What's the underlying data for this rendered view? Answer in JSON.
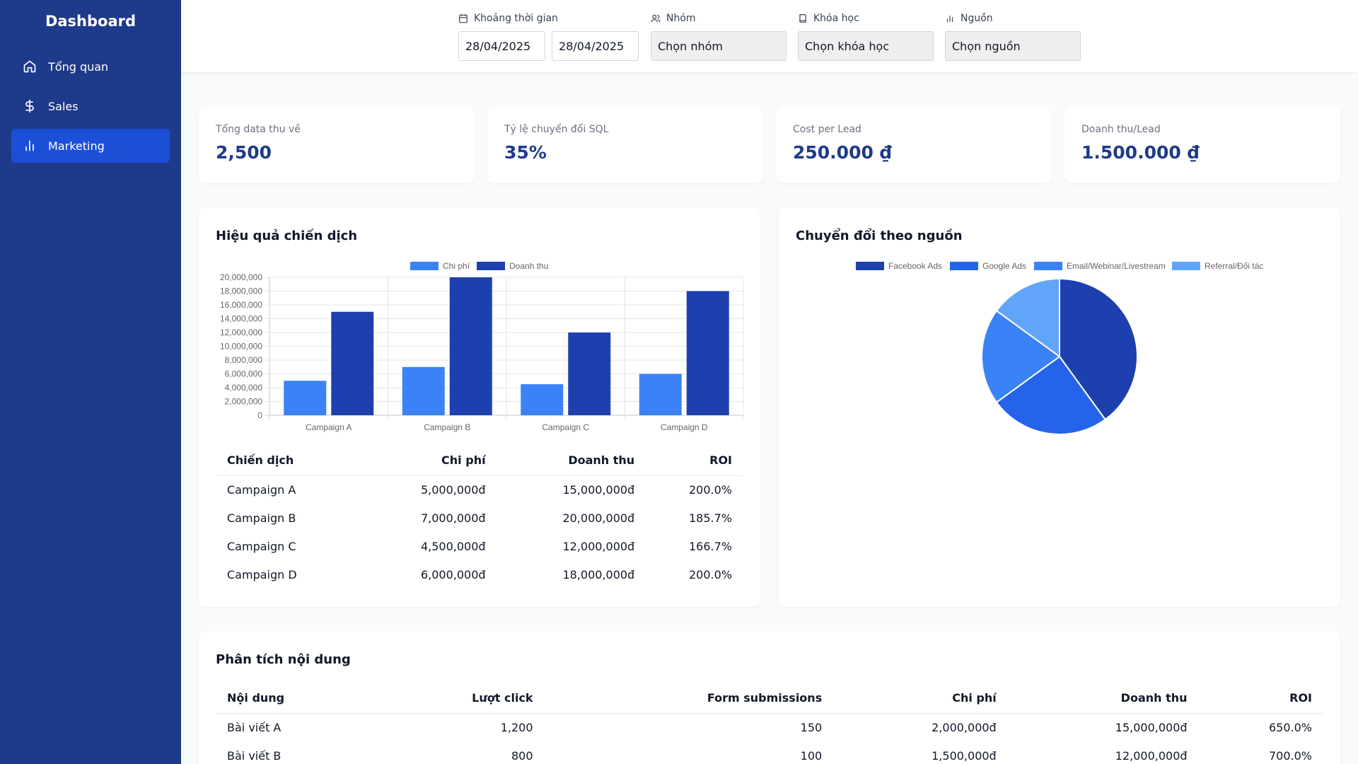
{
  "sidebar": {
    "title": "Dashboard",
    "items": [
      {
        "label": "Tổng quan",
        "icon": "home-icon"
      },
      {
        "label": "Sales",
        "icon": "dollar-icon"
      },
      {
        "label": "Marketing",
        "icon": "bar-chart-icon",
        "active": true
      }
    ]
  },
  "filters": {
    "date": {
      "label": "Khoảng thời gian",
      "from": "28/04/2025",
      "to": "28/04/2025"
    },
    "group": {
      "label": "Nhóm",
      "value": "Chọn nhóm"
    },
    "course": {
      "label": "Khóa học",
      "value": "Chọn khóa học"
    },
    "source": {
      "label": "Nguồn",
      "value": "Chọn nguồn"
    }
  },
  "kpis": [
    {
      "label": "Tổng data thu về",
      "value": "2,500"
    },
    {
      "label": "Tỷ lệ chuyển đổi SQL",
      "value": "35%"
    },
    {
      "label": "Cost per Lead",
      "value": "250.000 ₫"
    },
    {
      "label": "Doanh thu/Lead",
      "value": "1.500.000 ₫"
    }
  ],
  "campaign": {
    "title": "Hiệu quả chiến dịch",
    "columns": [
      "Chiến dịch",
      "Chi phí",
      "Doanh thu",
      "ROI"
    ],
    "rows": [
      [
        "Campaign A",
        "5,000,000đ",
        "15,000,000đ",
        "200.0%"
      ],
      [
        "Campaign B",
        "7,000,000đ",
        "20,000,000đ",
        "185.7%"
      ],
      [
        "Campaign C",
        "4,500,000đ",
        "12,000,000đ",
        "166.7%"
      ],
      [
        "Campaign D",
        "6,000,000đ",
        "18,000,000đ",
        "200.0%"
      ]
    ]
  },
  "source_panel": {
    "title": "Chuyển đổi theo nguồn"
  },
  "content": {
    "title": "Phân tích nội dung",
    "columns": [
      "Nội dung",
      "Lượt click",
      "Form submissions",
      "Chi phí",
      "Doanh thu",
      "ROI"
    ],
    "rows": [
      [
        "Bài viết A",
        "1,200",
        "150",
        "2,000,000đ",
        "15,000,000đ",
        "650.0%"
      ],
      [
        "Bài viết B",
        "800",
        "100",
        "1,500,000đ",
        "12,000,000đ",
        "700.0%"
      ]
    ]
  },
  "chart_data": [
    {
      "type": "bar",
      "categories": [
        "Campaign A",
        "Campaign B",
        "Campaign C",
        "Campaign D"
      ],
      "series": [
        {
          "name": "Chi phí",
          "values": [
            5000000,
            7000000,
            4500000,
            6000000
          ],
          "color": "#3b82f6"
        },
        {
          "name": "Doanh thu",
          "values": [
            15000000,
            20000000,
            12000000,
            18000000
          ],
          "color": "#1e40af"
        }
      ],
      "ylim": [
        0,
        20000000
      ],
      "yticks": [
        "0",
        "2,000,000",
        "4,000,000",
        "6,000,000",
        "8,000,000",
        "10,000,000",
        "12,000,000",
        "14,000,000",
        "16,000,000",
        "18,000,000",
        "20,000,000"
      ],
      "grid": true,
      "legend": "top"
    },
    {
      "type": "pie",
      "labels": [
        "Facebook Ads",
        "Google Ads",
        "Email/Webinar/Livestream",
        "Referral/Đối tác"
      ],
      "values": [
        40,
        25,
        20,
        15
      ],
      "colors": [
        "#1e40af",
        "#2563eb",
        "#3b82f6",
        "#60a5fa"
      ],
      "legend": "top"
    }
  ]
}
